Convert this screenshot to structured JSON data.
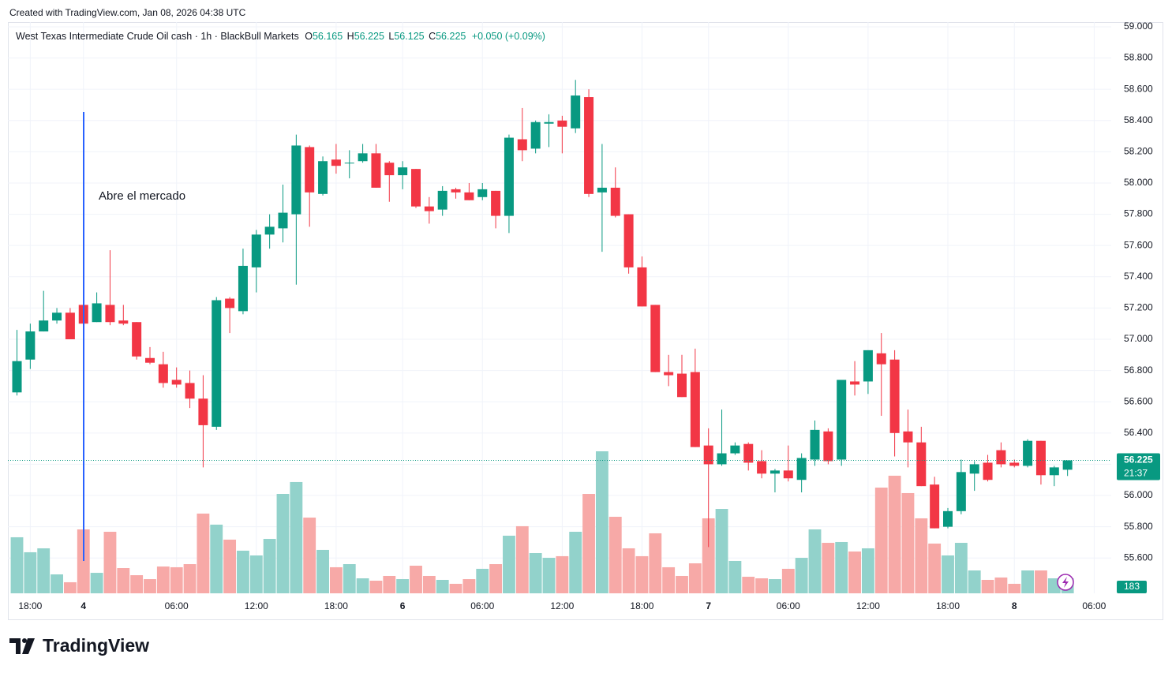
{
  "chart_data": {
    "type": "candlestick",
    "credit": "Created with TradingView.com, Jan 08, 2026 04:38 UTC",
    "symbol": "West Texas Intermediate Crude Oil cash · 1h · BlackBull Markets",
    "ohlc_labels": [
      "O",
      "H",
      "L",
      "C"
    ],
    "change": "+0.050 (+0.09%)",
    "countdown": "21:37",
    "annotation": "Abre el mercado",
    "brand": "TradingView",
    "up_color": "#089981",
    "down_color": "#f23645",
    "up_volume_color": "#92d2cb",
    "down_volume_color": "#f7a9a7",
    "annotation_color": "#2962ff",
    "grid": true,
    "ylim": [
      55.374,
      59.03
    ],
    "yticks": [
      {
        "value": 55.6,
        "label": "55.600"
      },
      {
        "value": 55.8,
        "label": "55.800"
      },
      {
        "value": 56.0,
        "label": "56.000"
      },
      {
        "value": 56.2,
        "label": "56.200"
      },
      {
        "value": 56.4,
        "label": "56.400"
      },
      {
        "value": 56.6,
        "label": "56.600"
      },
      {
        "value": 56.8,
        "label": "56.800"
      },
      {
        "value": 57.0,
        "label": "57.000"
      },
      {
        "value": 57.2,
        "label": "57.200"
      },
      {
        "value": 57.4,
        "label": "57.400"
      },
      {
        "value": 57.6,
        "label": "57.600"
      },
      {
        "value": 57.8,
        "label": "57.800"
      },
      {
        "value": 58.0,
        "label": "58.000"
      },
      {
        "value": 58.2,
        "label": "58.200"
      },
      {
        "value": 58.4,
        "label": "58.400"
      },
      {
        "value": 58.6,
        "label": "58.600"
      },
      {
        "value": 58.8,
        "label": "58.800"
      },
      {
        "value": 59.0,
        "label": "59.000"
      }
    ],
    "xticks": [
      {
        "value": 1,
        "label": "18:00"
      },
      {
        "value": 5,
        "label": "4"
      },
      {
        "value": 12,
        "label": "06:00"
      },
      {
        "value": 18,
        "label": "12:00"
      },
      {
        "value": 24,
        "label": "18:00"
      },
      {
        "value": 29,
        "label": "6"
      },
      {
        "value": 35,
        "label": "06:00"
      },
      {
        "value": 41,
        "label": "12:00"
      },
      {
        "value": 47,
        "label": "18:00"
      },
      {
        "value": 52,
        "label": "7"
      },
      {
        "value": 58,
        "label": "06:00"
      },
      {
        "value": 64,
        "label": "12:00"
      },
      {
        "value": 70,
        "label": "18:00"
      },
      {
        "value": 75,
        "label": "8"
      },
      {
        "value": 81,
        "label": "06:00"
      }
    ],
    "open": [
      56.66,
      56.87,
      57.05,
      57.12,
      57.17,
      57.22,
      57.11,
      57.22,
      57.12,
      57.11,
      56.88,
      56.84,
      56.74,
      56.72,
      56.62,
      56.44,
      57.26,
      57.18,
      57.46,
      57.67,
      57.71,
      57.8,
      58.23,
      57.93,
      58.15,
      58.13,
      58.14,
      58.19,
      58.13,
      58.05,
      58.09,
      57.85,
      57.83,
      57.96,
      57.94,
      57.91,
      57.95,
      57.79,
      58.28,
      58.22,
      58.38,
      58.4,
      58.35,
      58.55,
      57.94,
      57.97,
      57.8,
      57.46,
      57.22,
      56.79,
      56.78,
      56.79,
      56.32,
      56.2,
      56.27,
      56.33,
      56.22,
      56.14,
      56.16,
      56.1,
      56.23,
      56.41,
      56.23,
      56.73,
      56.73,
      56.91,
      56.87,
      56.41,
      56.34,
      56.07,
      55.8,
      55.9,
      56.14,
      56.21,
      56.29,
      56.21,
      56.19,
      56.35,
      56.13,
      56.165
    ],
    "high": [
      57.06,
      57.1,
      57.31,
      57.2,
      57.2,
      57.3,
      57.3,
      57.57,
      57.22,
      57.11,
      56.95,
      56.92,
      56.82,
      56.8,
      56.77,
      57.27,
      57.27,
      57.58,
      57.7,
      57.8,
      57.99,
      58.31,
      58.24,
      58.17,
      58.25,
      58.21,
      58.25,
      58.25,
      58.14,
      58.14,
      58.09,
      57.91,
      57.98,
      57.97,
      58.0,
      58.0,
      57.95,
      58.31,
      58.48,
      58.4,
      58.44,
      58.43,
      58.66,
      58.6,
      58.25,
      58.1,
      57.8,
      57.53,
      57.22,
      56.9,
      56.9,
      56.94,
      56.43,
      56.55,
      56.34,
      56.34,
      56.29,
      56.17,
      56.32,
      56.27,
      56.48,
      56.43,
      56.74,
      56.86,
      56.93,
      57.04,
      56.93,
      56.55,
      56.44,
      56.12,
      55.92,
      56.23,
      56.22,
      56.26,
      56.34,
      56.23,
      56.36,
      56.35,
      56.19,
      56.225
    ],
    "low": [
      56.64,
      56.81,
      57.05,
      57.1,
      57.0,
      56.42,
      57.11,
      57.09,
      57.09,
      56.87,
      56.84,
      56.69,
      56.69,
      56.56,
      56.18,
      56.42,
      57.04,
      57.16,
      57.3,
      57.58,
      57.62,
      57.35,
      57.72,
      57.92,
      58.06,
      58.03,
      58.13,
      57.97,
      57.88,
      57.96,
      57.84,
      57.74,
      57.79,
      57.9,
      57.89,
      57.89,
      57.71,
      57.68,
      58.14,
      58.19,
      58.23,
      58.19,
      58.32,
      57.91,
      57.56,
      57.78,
      57.42,
      57.21,
      56.79,
      56.7,
      56.63,
      56.31,
      55.67,
      56.19,
      56.26,
      56.16,
      56.11,
      56.02,
      56.09,
      56.02,
      56.19,
      56.2,
      56.19,
      56.64,
      56.65,
      56.51,
      56.25,
      56.18,
      56.06,
      55.79,
      55.79,
      55.88,
      56.03,
      56.09,
      56.18,
      56.18,
      56.18,
      56.07,
      56.06,
      56.125
    ],
    "close": [
      56.86,
      57.05,
      57.12,
      57.17,
      57.0,
      57.1,
      57.23,
      57.11,
      57.1,
      56.89,
      56.85,
      56.72,
      56.71,
      56.62,
      56.45,
      57.25,
      57.2,
      57.47,
      57.67,
      57.72,
      57.81,
      58.24,
      57.94,
      58.14,
      58.11,
      58.13,
      58.19,
      57.97,
      58.05,
      58.1,
      57.85,
      57.82,
      57.95,
      57.94,
      57.89,
      57.96,
      57.79,
      58.29,
      58.21,
      58.39,
      58.39,
      58.36,
      58.56,
      57.93,
      57.97,
      57.79,
      57.46,
      57.21,
      56.79,
      56.77,
      56.63,
      56.31,
      56.2,
      56.27,
      56.32,
      56.21,
      56.14,
      56.16,
      56.11,
      56.24,
      56.42,
      56.22,
      56.74,
      56.71,
      56.93,
      56.84,
      56.4,
      56.34,
      56.06,
      55.79,
      55.9,
      56.15,
      56.2,
      56.1,
      56.2,
      56.19,
      56.35,
      56.13,
      56.18,
      56.225
    ],
    "volume": [
      684,
      501,
      549,
      231,
      135,
      780,
      250,
      751,
      308,
      221,
      173,
      327,
      318,
      356,
      973,
      838,
      655,
      520,
      462,
      664,
      1213,
      1358,
      924,
      530,
      318,
      356,
      183,
      154,
      212,
      173,
      337,
      212,
      164,
      116,
      173,
      299,
      356,
      703,
      819,
      491,
      433,
      453,
      751,
      1213,
      1733,
      934,
      549,
      453,
      732,
      318,
      212,
      366,
      915,
      1030,
      395,
      202,
      183,
      173,
      299,
      433,
      780,
      616,
      626,
      510,
      549,
      1290,
      1435,
      1223,
      915,
      607,
      462,
      616,
      279,
      164,
      193,
      116,
      279,
      279,
      183,
      183
    ]
  }
}
